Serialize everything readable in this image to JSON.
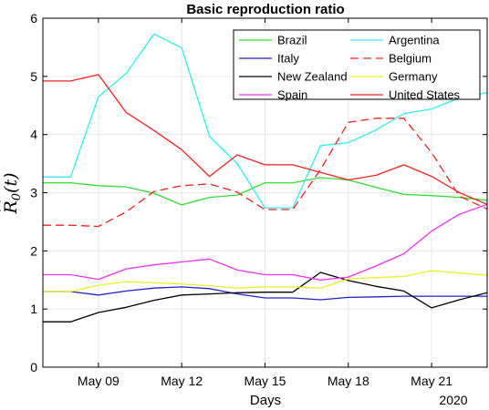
{
  "chart_data": {
    "type": "line",
    "title": "Basic reproduction ratio",
    "xlabel": "Days",
    "year_label": "2020",
    "ylabel": {
      "base": "R",
      "hat": "^",
      "subscript": "0",
      "argument": "(t)"
    },
    "x": [
      "May 07",
      "May 08",
      "May 09",
      "May 10",
      "May 11",
      "May 12",
      "May 13",
      "May 14",
      "May 15",
      "May 16",
      "May 17",
      "May 18",
      "May 19",
      "May 20",
      "May 21",
      "May 22",
      "May 23"
    ],
    "x_ticks": [
      "May 09",
      "May 12",
      "May 15",
      "May 18",
      "May 21"
    ],
    "xlim": [
      "May 07",
      "May 23"
    ],
    "y_ticks": [
      0,
      1,
      2,
      3,
      4,
      5,
      6
    ],
    "ylim": [
      0,
      6
    ],
    "grid": true,
    "legend_position": "top-right",
    "legend_columns": 2,
    "series": [
      {
        "name": "Brazil",
        "color": "#33dd33",
        "style": "solid",
        "values": [
          3.17,
          3.17,
          3.12,
          3.1,
          2.99,
          2.79,
          2.92,
          2.96,
          3.17,
          3.17,
          3.26,
          3.22,
          3.09,
          2.97,
          2.95,
          2.92,
          2.87
        ]
      },
      {
        "name": "Argentina",
        "color": "#33eeee",
        "style": "solid",
        "values": [
          3.27,
          3.27,
          4.65,
          5.05,
          5.73,
          5.49,
          3.97,
          3.5,
          2.74,
          2.74,
          3.81,
          3.86,
          4.08,
          4.36,
          4.44,
          4.63,
          4.72
        ]
      },
      {
        "name": "Italy",
        "color": "#2222cc",
        "style": "solid",
        "values": [
          1.3,
          1.3,
          1.24,
          1.31,
          1.36,
          1.38,
          1.35,
          1.26,
          1.19,
          1.19,
          1.16,
          1.2,
          1.21,
          1.22,
          1.22,
          1.22,
          1.22
        ]
      },
      {
        "name": "Belgium",
        "color": "#ee2222",
        "style": "dashed",
        "values": [
          2.44,
          2.44,
          2.42,
          2.67,
          3.02,
          3.12,
          3.15,
          3.01,
          2.71,
          2.71,
          3.4,
          4.21,
          4.28,
          4.28,
          3.69,
          2.94,
          2.72
        ]
      },
      {
        "name": "New Zealand",
        "color": "#000000",
        "style": "solid",
        "values": [
          0.78,
          0.78,
          0.94,
          1.03,
          1.15,
          1.24,
          1.26,
          1.28,
          1.29,
          1.29,
          1.63,
          1.49,
          1.39,
          1.31,
          1.02,
          1.16,
          1.28
        ]
      },
      {
        "name": "Germany",
        "color": "#eeee22",
        "style": "solid",
        "values": [
          1.3,
          1.3,
          1.41,
          1.47,
          1.45,
          1.43,
          1.4,
          1.36,
          1.38,
          1.38,
          1.36,
          1.52,
          1.54,
          1.56,
          1.66,
          1.62,
          1.58
        ]
      },
      {
        "name": "Spain",
        "color": "#ee33ee",
        "style": "solid",
        "values": [
          1.59,
          1.59,
          1.51,
          1.69,
          1.76,
          1.81,
          1.86,
          1.67,
          1.59,
          1.59,
          1.5,
          1.55,
          1.74,
          1.95,
          2.34,
          2.63,
          2.8
        ]
      },
      {
        "name": "United States",
        "color": "#ee2222",
        "style": "solid",
        "values": [
          4.92,
          4.92,
          5.03,
          4.38,
          4.07,
          3.74,
          3.28,
          3.65,
          3.48,
          3.48,
          3.35,
          3.22,
          3.3,
          3.48,
          3.28,
          3.0,
          2.8
        ]
      }
    ]
  }
}
